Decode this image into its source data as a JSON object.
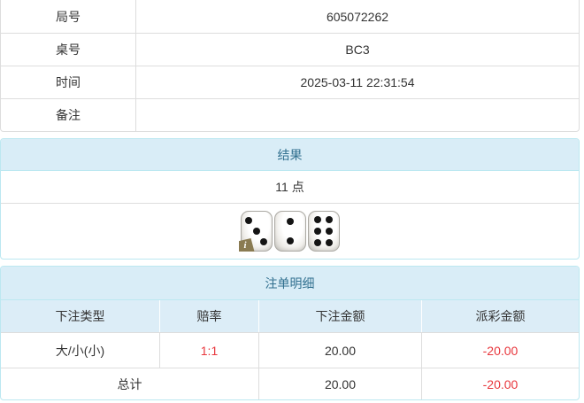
{
  "info_table": {
    "rows": [
      {
        "label": "局号",
        "value": "605072262"
      },
      {
        "label": "桌号",
        "value": "BC3"
      },
      {
        "label": "时间",
        "value": "2025-03-11 22:31:54"
      },
      {
        "label": "备注",
        "value": ""
      }
    ]
  },
  "result_panel": {
    "title": "结果",
    "points_text": "11 点",
    "dice": [
      3,
      2,
      6
    ],
    "info_badge": "i"
  },
  "bets_panel": {
    "title": "注单明细",
    "columns": [
      "下注类型",
      "赔率",
      "下注金额",
      "派彩金额"
    ],
    "rows": [
      {
        "bet_type": "大/小(小)",
        "odds": "1:1",
        "bet_amount": "20.00",
        "payout": "-20.00"
      }
    ],
    "total": {
      "label": "总计",
      "bet_amount": "20.00",
      "payout": "-20.00"
    }
  },
  "colors": {
    "heading_bg": "#d9edf7",
    "subheading_bg": "#dcedf7",
    "heading_text": "#31708f",
    "panel_border": "#bce8f1",
    "table_border": "#dddddd",
    "negative": "#e8373d",
    "badge": "#8a7b52",
    "text": "#333333"
  }
}
